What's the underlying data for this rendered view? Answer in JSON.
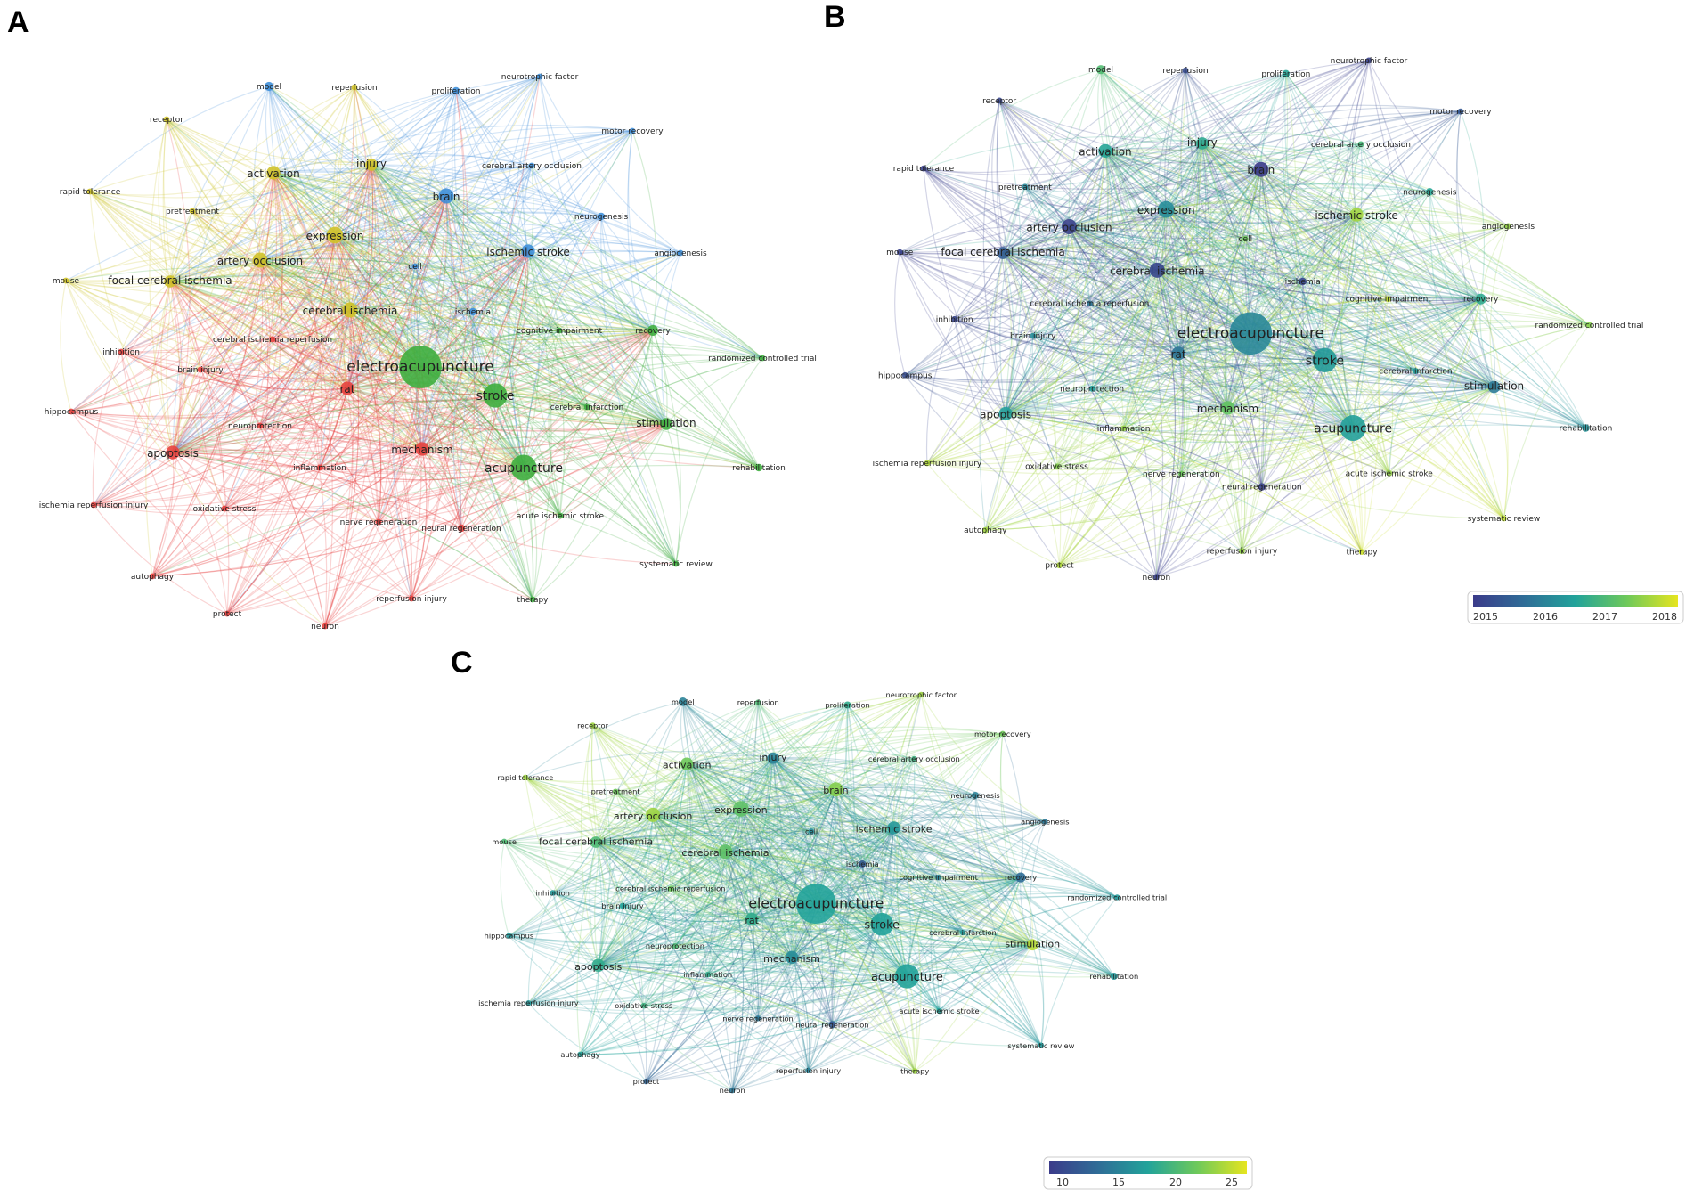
{
  "panels": [
    {
      "id": "A",
      "label": "A",
      "mode": "cluster",
      "origin": [
        0,
        0
      ]
    },
    {
      "id": "B",
      "label": "B",
      "mode": "overlay",
      "origin": [
        937,
        -13
      ]
    },
    {
      "id": "C",
      "label": "C",
      "mode": "density",
      "origin": [
        501,
        718
      ]
    }
  ],
  "cluster_colors": {
    "red": "#e8423f",
    "green": "#3fae3f",
    "blue": "#3f8fd9",
    "yellow": "#cfc229"
  },
  "overlay_legend": {
    "ticks": [
      "2015",
      "2016",
      "2017",
      "2018"
    ],
    "min": 2015,
    "max": 2018.5
  },
  "density_legend": {
    "ticks": [
      "10",
      "15",
      "20",
      "25"
    ],
    "min": 7,
    "max": 27
  },
  "gradient_colors": [
    "#3b3b8a",
    "#2f6d97",
    "#22a39a",
    "#6ec95a",
    "#e6e51f"
  ],
  "nodes": [
    {
      "id": "electroacupuncture",
      "label": "electroacupuncture",
      "cluster": "green",
      "size": 28,
      "year": 2016.3,
      "density": 17
    },
    {
      "id": "stroke",
      "label": "stroke",
      "cluster": "green",
      "size": 16,
      "year": 2016.6,
      "density": 17
    },
    {
      "id": "acupuncture",
      "label": "acupuncture",
      "cluster": "green",
      "size": 17,
      "year": 2016.7,
      "density": 17
    },
    {
      "id": "rat",
      "label": "rat",
      "cluster": "red",
      "size": 9,
      "year": 2016.0,
      "density": 18
    },
    {
      "id": "mechanism",
      "label": "mechanism",
      "cluster": "red",
      "size": 9,
      "year": 2017.5,
      "density": 15
    },
    {
      "id": "cerebral ischemia",
      "label": "cerebral ischemia",
      "cluster": "yellow",
      "size": 10,
      "year": 2015.2,
      "density": 21
    },
    {
      "id": "expression",
      "label": "expression",
      "cluster": "yellow",
      "size": 11,
      "year": 2016.4,
      "density": 21
    },
    {
      "id": "artery occlusion",
      "label": "artery occlusion",
      "cluster": "yellow",
      "size": 10,
      "year": 2015.1,
      "density": 24
    },
    {
      "id": "activation",
      "label": "activation",
      "cluster": "yellow",
      "size": 9,
      "year": 2016.8,
      "density": 22
    },
    {
      "id": "injury",
      "label": "injury",
      "cluster": "yellow",
      "size": 8,
      "year": 2016.9,
      "density": 14
    },
    {
      "id": "brain",
      "label": "brain",
      "cluster": "blue",
      "size": 10,
      "year": 2015.0,
      "density": 23
    },
    {
      "id": "ischemic stroke",
      "label": "ischemic stroke",
      "cluster": "blue",
      "size": 9,
      "year": 2018.0,
      "density": 16
    },
    {
      "id": "focal cerebral ischemia",
      "label": "focal cerebral ischemia",
      "cluster": "yellow",
      "size": 8,
      "year": 2015.6,
      "density": 20
    },
    {
      "id": "apoptosis",
      "label": "apoptosis",
      "cluster": "red",
      "size": 9,
      "year": 2016.7,
      "density": 18
    },
    {
      "id": "recovery",
      "label": "recovery",
      "cluster": "green",
      "size": 7,
      "year": 2016.9,
      "density": 12
    },
    {
      "id": "stimulation",
      "label": "stimulation",
      "cluster": "green",
      "size": 8,
      "year": 2016.1,
      "density": 25
    },
    {
      "id": "model",
      "label": "model",
      "cluster": "blue",
      "size": 6,
      "year": 2017.3,
      "density": 14
    },
    {
      "id": "reperfusion",
      "label": "reperfusion",
      "cluster": "yellow",
      "size": 4,
      "year": 2015.3,
      "density": 20
    },
    {
      "id": "proliferation",
      "label": "proliferation",
      "cluster": "blue",
      "size": 5,
      "year": 2016.8,
      "density": 18
    },
    {
      "id": "neurotrophic factor",
      "label": "neurotrophic factor",
      "cluster": "blue",
      "size": 4,
      "year": 2015.1,
      "density": 24
    },
    {
      "id": "receptor",
      "label": "receptor",
      "cluster": "yellow",
      "size": 4,
      "year": 2015.2,
      "density": 24
    },
    {
      "id": "motor recovery",
      "label": "motor recovery",
      "cluster": "blue",
      "size": 4,
      "year": 2015.5,
      "density": 22
    },
    {
      "id": "cerebral artery occlusion",
      "label": "cerebral artery occlusion",
      "cluster": "blue",
      "size": 4,
      "year": 2017.2,
      "density": 19
    },
    {
      "id": "rapid tolerance",
      "label": "rapid tolerance",
      "cluster": "yellow",
      "size": 4,
      "year": 2015.1,
      "density": 24
    },
    {
      "id": "pretreatment",
      "label": "pretreatment",
      "cluster": "yellow",
      "size": 4,
      "year": 2016.3,
      "density": 22
    },
    {
      "id": "neurogenesis",
      "label": "neurogenesis",
      "cluster": "blue",
      "size": 5,
      "year": 2016.8,
      "density": 14
    },
    {
      "id": "angiogenesis",
      "label": "angiogenesis",
      "cluster": "blue",
      "size": 4,
      "year": 2017.9,
      "density": 13
    },
    {
      "id": "cell",
      "label": "cell",
      "cluster": "blue",
      "size": 4,
      "year": 2017.6,
      "density": 15
    },
    {
      "id": "mouse",
      "label": "mouse",
      "cluster": "yellow",
      "size": 4,
      "year": 2015.1,
      "density": 20
    },
    {
      "id": "ischemia",
      "label": "ischemia",
      "cluster": "blue",
      "size": 5,
      "year": 2015.2,
      "density": 10
    },
    {
      "id": "cognitive impairment",
      "label": "cognitive impairment",
      "cluster": "green",
      "size": 4,
      "year": 2018.2,
      "density": 14
    },
    {
      "id": "cerebral ischemia reperfusion",
      "label": "cerebral ischemia reperfusion",
      "cluster": "red",
      "size": 4,
      "year": 2016.0,
      "density": 22
    },
    {
      "id": "randomized controlled trial",
      "label": "randomized controlled trial",
      "cluster": "green",
      "size": 4,
      "year": 2017.8,
      "density": 16
    },
    {
      "id": "inhibition",
      "label": "inhibition",
      "cluster": "red",
      "size": 4,
      "year": 2015.2,
      "density": 16
    },
    {
      "id": "brain injury",
      "label": "brain injury",
      "cluster": "red",
      "size": 4,
      "year": 2016.4,
      "density": 17
    },
    {
      "id": "hippocampus",
      "label": "hippocampus",
      "cluster": "red",
      "size": 4,
      "year": 2015.3,
      "density": 16
    },
    {
      "id": "neuroprotection",
      "label": "neuroprotection",
      "cluster": "red",
      "size": 4,
      "year": 2016.7,
      "density": 20
    },
    {
      "id": "cerebral infarction",
      "label": "cerebral infarction",
      "cluster": "green",
      "size": 4,
      "year": 2016.6,
      "density": 16
    },
    {
      "id": "rehabilitation",
      "label": "rehabilitation",
      "cluster": "green",
      "size": 5,
      "year": 2016.5,
      "density": 16
    },
    {
      "id": "inflammation",
      "label": "inflammation",
      "cluster": "red",
      "size": 4,
      "year": 2017.9,
      "density": 18
    },
    {
      "id": "ischemia reperfusion injury",
      "label": "ischemia reperfusion injury",
      "cluster": "red",
      "size": 4,
      "year": 2018.1,
      "density": 16
    },
    {
      "id": "oxidative stress",
      "label": "oxidative stress",
      "cluster": "red",
      "size": 4,
      "year": 2017.8,
      "density": 19
    },
    {
      "id": "nerve regeneration",
      "label": "nerve regeneration",
      "cluster": "red",
      "size": 4,
      "year": 2017.6,
      "density": 13
    },
    {
      "id": "neural regeneration",
      "label": "neural regeneration",
      "cluster": "red",
      "size": 5,
      "year": 2015.1,
      "density": 10
    },
    {
      "id": "acute ischemic stroke",
      "label": "acute ischemic stroke",
      "cluster": "green",
      "size": 4,
      "year": 2017.9,
      "density": 17
    },
    {
      "id": "autophagy",
      "label": "autophagy",
      "cluster": "red",
      "size": 4,
      "year": 2018.0,
      "density": 17
    },
    {
      "id": "systematic review",
      "label": "systematic review",
      "cluster": "green",
      "size": 4,
      "year": 2018.2,
      "density": 16
    },
    {
      "id": "protect",
      "label": "protect",
      "cluster": "red",
      "size": 4,
      "year": 2018.1,
      "density": 11
    },
    {
      "id": "reperfusion injury",
      "label": "reperfusion injury",
      "cluster": "red",
      "size": 4,
      "year": 2017.9,
      "density": 14
    },
    {
      "id": "neuron",
      "label": "neuron",
      "cluster": "red",
      "size": 4,
      "year": 2015.1,
      "density": 13
    },
    {
      "id": "therapy",
      "label": "therapy",
      "cluster": "green",
      "size": 4,
      "year": 2018.3,
      "density": 24
    }
  ]
}
